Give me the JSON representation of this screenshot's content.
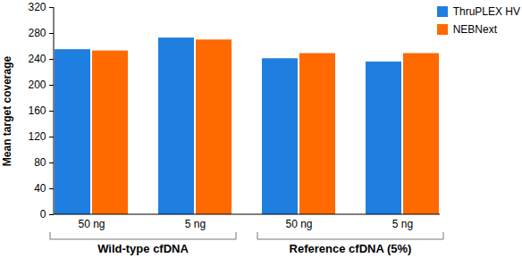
{
  "chart_data": {
    "type": "bar",
    "categories": [
      "50 ng",
      "5 ng",
      "50 ng",
      "5 ng"
    ],
    "category_groups": [
      "Wild-type cfDNA",
      "Wild-type cfDNA",
      "Reference cfDNA (5%)",
      "Reference cfDNA (5%)"
    ],
    "series": [
      {
        "name": "ThruPLEX HV",
        "color": "#1f7fe0",
        "values": [
          255,
          273,
          241,
          236
        ]
      },
      {
        "name": "NEBNext",
        "color": "#ff6a00",
        "values": [
          253,
          270,
          249,
          249
        ]
      }
    ],
    "ylabel": "Mean target coverage",
    "ylim": [
      0,
      320
    ],
    "yticks": [
      0,
      40,
      80,
      120,
      160,
      200,
      240,
      280,
      320
    ],
    "legend": "top-right",
    "grid": false
  }
}
